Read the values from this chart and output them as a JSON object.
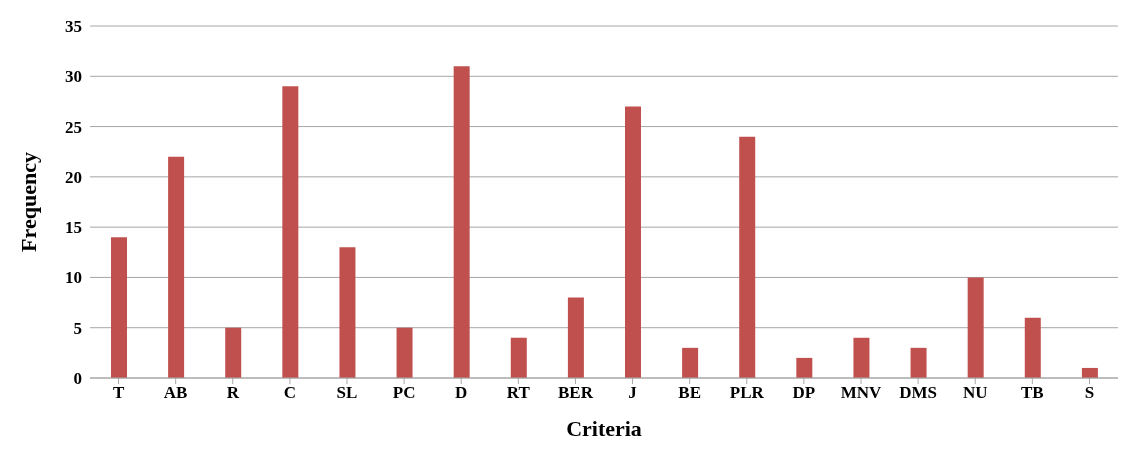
{
  "chart_data": {
    "type": "bar",
    "xlabel": "Criteria",
    "ylabel": "Frequency",
    "categories": [
      "T",
      "AB",
      "R",
      "C",
      "SL",
      "PC",
      "D",
      "RT",
      "BER",
      "J",
      "BE",
      "PLR",
      "DP",
      "MNV",
      "DMS",
      "NU",
      "TB",
      "S"
    ],
    "values": [
      14,
      22,
      5,
      29,
      13,
      5,
      31,
      4,
      8,
      27,
      3,
      24,
      2,
      4,
      3,
      10,
      6,
      1
    ],
    "color": "#c0504d",
    "ylim": [
      0,
      35
    ],
    "yticks": [
      0,
      5,
      10,
      15,
      20,
      25,
      30,
      35
    ],
    "grid": "y"
  }
}
